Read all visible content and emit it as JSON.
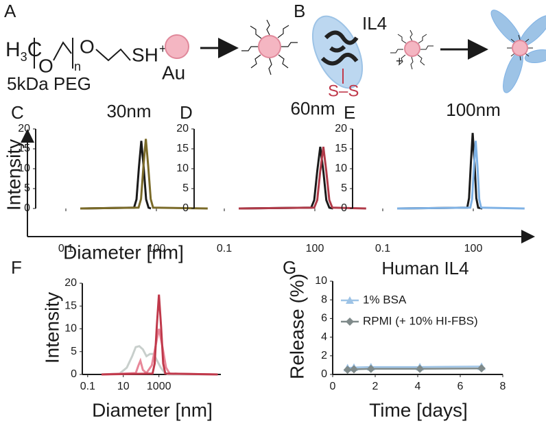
{
  "schematic": {
    "panel_a": "A",
    "formula": [
      "H",
      "3",
      "C",
      "O",
      "n",
      "O",
      "SH",
      "+"
    ],
    "au": "Au",
    "peg": "5kDa PEG",
    "panel_b": "B",
    "protein": "IL4",
    "bond": "S–S",
    "plus": "+"
  },
  "chart_data": [
    {
      "type": "line",
      "label": "C",
      "title": "30nm",
      "ylabel": "Intensity",
      "xlabel": "Diameter [nm]",
      "xscale": "log",
      "xlim": [
        0.01,
        10000
      ],
      "ylim": [
        0,
        20
      ],
      "xticks": [
        0.1,
        100
      ],
      "yticks": [
        0,
        5,
        10,
        15,
        20
      ],
      "series": [
        {
          "color": "#1a1a1a",
          "x": [
            0.3,
            18.2,
            21.9,
            26.3,
            31.6,
            38,
            45.7,
            55,
            66
          ],
          "values": [
            0,
            0.2,
            2.3,
            10.3,
            17,
            10.3,
            2.3,
            0.2,
            0
          ]
        },
        {
          "color": "#7a6a28",
          "x": [
            0.3,
            25.7,
            30.9,
            37.2,
            44.7,
            53.7,
            64.6,
            77.6,
            5000
          ],
          "values": [
            0,
            0.2,
            2.4,
            10.6,
            17.5,
            10.6,
            2.4,
            0.2,
            0
          ]
        }
      ]
    },
    {
      "type": "line",
      "label": "D",
      "title": "60nm",
      "xscale": "log",
      "xlim": [
        0.01,
        10000
      ],
      "ylim": [
        0,
        20
      ],
      "xticks": [
        0.1,
        100
      ],
      "yticks": [
        0,
        5,
        10,
        15,
        20
      ],
      "series": [
        {
          "color": "#1a1a1a",
          "x": [
            0.3,
            75.9,
            95.5,
            120,
            151,
            191,
            240,
            302,
            400
          ],
          "values": [
            0,
            0.2,
            2.1,
            9.4,
            15.5,
            9.4,
            2.1,
            0.2,
            0
          ]
        },
        {
          "color": "#b03a48",
          "x": [
            0.3,
            95.5,
            120,
            151,
            191,
            240,
            302,
            380,
            5000
          ],
          "values": [
            0,
            0.2,
            2.1,
            9.4,
            15.5,
            9.4,
            2.1,
            0.2,
            0
          ]
        }
      ]
    },
    {
      "type": "line",
      "label": "E",
      "title": "100nm",
      "xscale": "log",
      "xlim": [
        0.01,
        10000
      ],
      "ylim": [
        0,
        20
      ],
      "xticks": [
        0.1,
        100
      ],
      "yticks": [
        0,
        5,
        10,
        15,
        20
      ],
      "series": [
        {
          "color": "#1a1a1a",
          "x": [
            0.3,
            63.1,
            72.4,
            83.2,
            95.5,
            110,
            126,
            145,
            200
          ],
          "values": [
            0,
            0.2,
            2.6,
            11.5,
            19,
            11.5,
            2.6,
            0.2,
            0
          ]
        },
        {
          "color": "#7fb2e5",
          "x": [
            0.3,
            79.4,
            91.2,
            105,
            120,
            138,
            158,
            182,
            5000
          ],
          "values": [
            0,
            0.2,
            2.3,
            10.3,
            17,
            10.3,
            2.3,
            0.2,
            0
          ]
        }
      ]
    },
    {
      "type": "line",
      "label": "F",
      "ylabel": "Intensity",
      "xlabel": "Diameter [nm]",
      "xscale": "log",
      "xlim": [
        0.05,
        3000000
      ],
      "ylim": [
        0,
        20
      ],
      "xticks": [
        0.1,
        10,
        1000
      ],
      "yticks": [
        0,
        5,
        10,
        15,
        20
      ],
      "series": [
        {
          "color": "#c8cfcc",
          "x": [
            0.6,
            6.3,
            15.8,
            31.6,
            50,
            79,
            126,
            200,
            316,
            501,
            794,
            1259,
            1995,
            3162,
            2000000
          ],
          "values": [
            0,
            0.2,
            1.5,
            4,
            6,
            6.2,
            5.5,
            4,
            4.5,
            4.5,
            3,
            1.5,
            0.5,
            0,
            0
          ]
        },
        {
          "color": "#e8889a",
          "x": [
            0.6,
            50,
            71,
            91,
            126,
            200,
            398,
            631,
            1000,
            1585,
            2512,
            3981,
            2000000
          ],
          "values": [
            0,
            0.3,
            2,
            3,
            1,
            0.3,
            2,
            6,
            10,
            6,
            1.5,
            0.2,
            0
          ]
        },
        {
          "color": "#c0394b",
          "x": [
            0.6,
            437,
            575,
            759,
            1000,
            1318,
            1738,
            2291,
            2000000
          ],
          "values": [
            0,
            0.2,
            2.4,
            10.6,
            17.5,
            10.6,
            2.4,
            0.2,
            0
          ]
        }
      ]
    },
    {
      "type": "scatter-line",
      "label": "G",
      "title": "Human IL4",
      "ylabel": "Release (%)",
      "xlabel": "Time [days]",
      "xlim": [
        0,
        8
      ],
      "ylim": [
        0,
        10
      ],
      "xticks": [
        0,
        2,
        4,
        6,
        8
      ],
      "yticks": [
        0,
        2,
        4,
        6,
        8,
        10
      ],
      "legend": "upper left",
      "series": [
        {
          "name": "1% BSA",
          "color": "#9dc3e6",
          "marker": "triangle",
          "x": [
            0.7,
            1,
            1.8,
            4.1,
            7
          ],
          "values": [
            0.7,
            0.75,
            0.8,
            0.8,
            0.85
          ]
        },
        {
          "name": "RPMI (+ 10% HI-FBS)",
          "color": "#7f8a8a",
          "marker": "diamond",
          "x": [
            0.7,
            1,
            1.8,
            4.1,
            7
          ],
          "values": [
            0.5,
            0.55,
            0.6,
            0.6,
            0.65
          ]
        }
      ]
    }
  ]
}
